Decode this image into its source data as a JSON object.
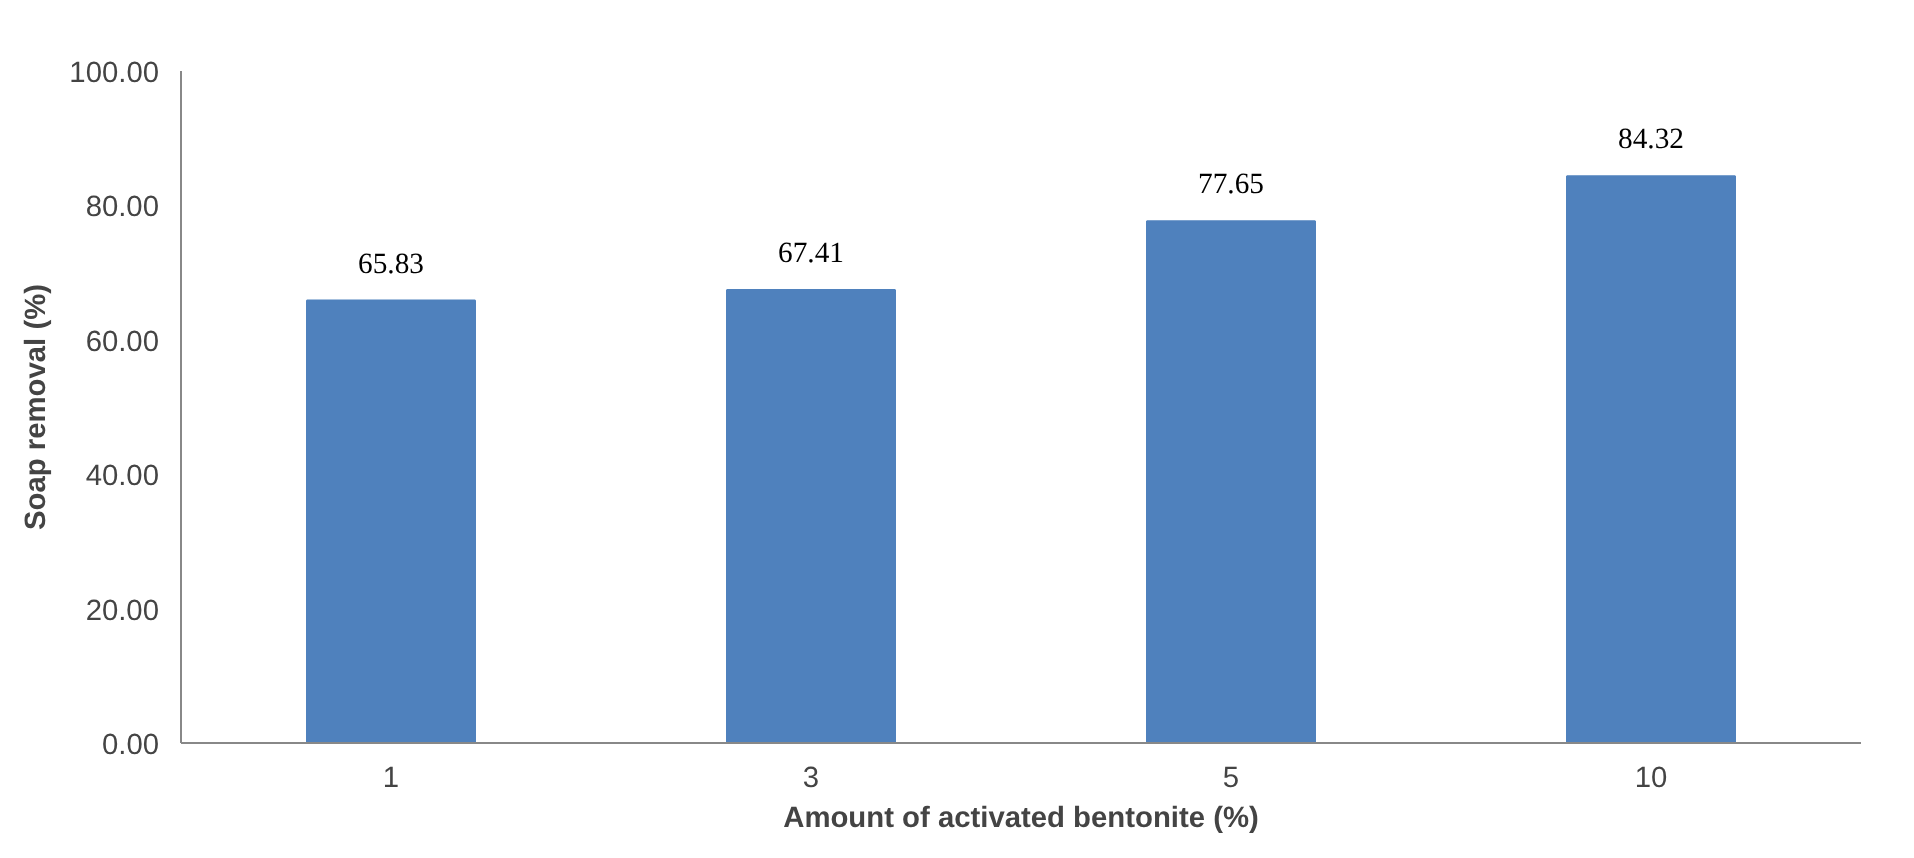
{
  "chart_data": {
    "type": "bar",
    "xlabel": "Amount of activated bentonite (%)",
    "ylabel": "Soap removal (%)",
    "categories": [
      "1",
      "3",
      "5",
      "10"
    ],
    "values": [
      65.83,
      67.41,
      77.65,
      84.32
    ],
    "color": "#4f81bd",
    "ylim": [
      0,
      100
    ],
    "yticks": [
      {
        "value": 0,
        "label": "0.00"
      },
      {
        "value": 20,
        "label": "20.00"
      },
      {
        "value": 40,
        "label": "40.00"
      },
      {
        "value": 60,
        "label": "60.00"
      },
      {
        "value": 80,
        "label": "80.00"
      },
      {
        "value": 100,
        "label": "100.00"
      }
    ],
    "grid": false,
    "data_labels": true
  }
}
